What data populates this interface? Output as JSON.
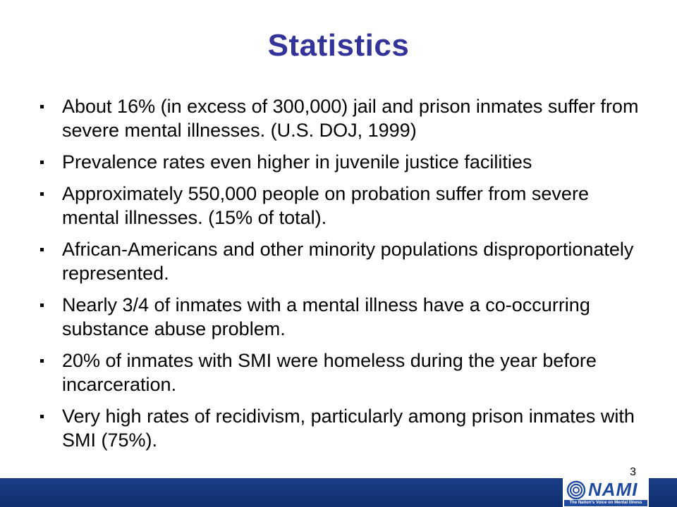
{
  "slide": {
    "title": "Statistics",
    "page_number": "3",
    "bullets": [
      "About 16% (in excess of 300,000) jail and prison inmates suffer from severe mental illnesses.  (U.S. DOJ, 1999)",
      "Prevalence rates even higher in juvenile justice facilities",
      "Approximately 550,000 people on probation suffer from severe mental illnesses. (15% of total).",
      "African-Americans and other minority populations disproportionately represented.",
      "Nearly 3/4 of inmates with a mental illness have a co-occurring substance abuse problem.",
      "20% of inmates with SMI were homeless during the year before incarceration.",
      "Very high rates of recidivism, particularly among prison inmates with SMI (75%)."
    ]
  },
  "logo": {
    "wordmark": "NAMI",
    "tagline": "The Nation's Voice on Mental Illness"
  },
  "colors": {
    "title": "#33339a",
    "footer_band": "#1a3d86",
    "logo_blue": "#1f4aa0"
  }
}
